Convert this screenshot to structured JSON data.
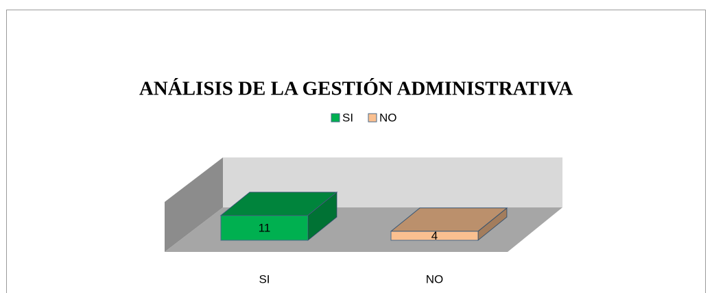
{
  "chart_data": {
    "type": "bar3d",
    "title": "ANÁLISIS DE LA GESTIÓN ADMINISTRATIVA",
    "categories": [
      "SI",
      "NO"
    ],
    "values": [
      11,
      4
    ],
    "colors": [
      "#00b050",
      "#fac090"
    ]
  }
}
